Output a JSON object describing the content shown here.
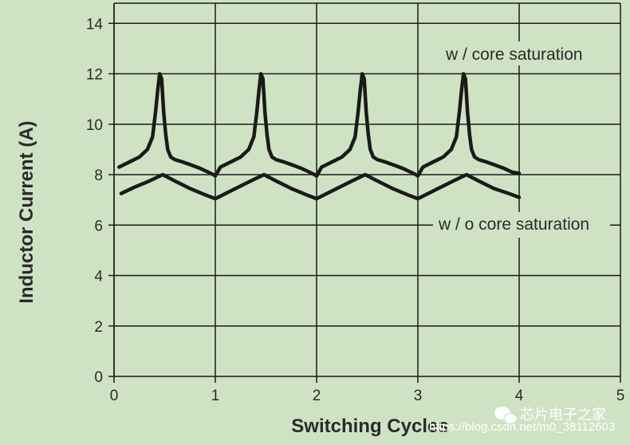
{
  "chart_data": {
    "type": "line",
    "xlabel": "Switching Cycles",
    "ylabel": "Inductor Current (A)",
    "xlim": [
      0,
      5
    ],
    "ylim": [
      0,
      14.8
    ],
    "x_ticks": [
      0,
      1,
      2,
      3,
      4,
      5
    ],
    "y_ticks": [
      0,
      2,
      4,
      6,
      8,
      10,
      12,
      14
    ],
    "grid": true,
    "colors": {
      "background": "#cfe3c4",
      "grid": "#1a1a1a",
      "line": "#1a1a1a"
    },
    "annotations": [
      {
        "text": "w / core saturation",
        "series": 0
      },
      {
        "text": "w / o core saturation",
        "series": 1
      }
    ],
    "series": [
      {
        "x": [
          0.05,
          0.15,
          0.25,
          0.33,
          0.38,
          0.41,
          0.43,
          0.45,
          0.47,
          0.49,
          0.51,
          0.53,
          0.56,
          0.6,
          0.68,
          0.75,
          0.85,
          0.93,
          0.98,
          1.0,
          1.05,
          1.15,
          1.25,
          1.33,
          1.38,
          1.41,
          1.43,
          1.45,
          1.47,
          1.49,
          1.51,
          1.53,
          1.56,
          1.6,
          1.68,
          1.75,
          1.85,
          1.93,
          1.98,
          2.0,
          2.05,
          2.15,
          2.25,
          2.33,
          2.38,
          2.41,
          2.43,
          2.45,
          2.47,
          2.49,
          2.51,
          2.53,
          2.56,
          2.6,
          2.68,
          2.75,
          2.85,
          2.93,
          2.98,
          3.0,
          3.05,
          3.15,
          3.25,
          3.33,
          3.38,
          3.41,
          3.43,
          3.45,
          3.47,
          3.49,
          3.51,
          3.53,
          3.56,
          3.6,
          3.68,
          3.75,
          3.85,
          3.93,
          4.0
        ],
        "y": [
          8.3,
          8.5,
          8.7,
          9.0,
          9.5,
          10.5,
          11.3,
          12.0,
          11.8,
          10.5,
          9.6,
          9.0,
          8.7,
          8.6,
          8.5,
          8.4,
          8.25,
          8.1,
          8.0,
          7.95,
          8.3,
          8.5,
          8.7,
          9.0,
          9.5,
          10.5,
          11.3,
          12.0,
          11.8,
          10.5,
          9.6,
          9.0,
          8.7,
          8.6,
          8.5,
          8.4,
          8.25,
          8.1,
          8.0,
          7.95,
          8.3,
          8.5,
          8.7,
          9.0,
          9.5,
          10.5,
          11.3,
          12.0,
          11.8,
          10.5,
          9.6,
          9.0,
          8.7,
          8.6,
          8.5,
          8.4,
          8.25,
          8.1,
          8.0,
          7.95,
          8.3,
          8.5,
          8.7,
          9.0,
          9.5,
          10.5,
          11.3,
          12.0,
          11.8,
          10.5,
          9.6,
          9.0,
          8.7,
          8.6,
          8.5,
          8.4,
          8.25,
          8.1,
          8.05
        ]
      },
      {
        "x": [
          0.07,
          0.2,
          0.35,
          0.48,
          0.6,
          0.75,
          0.9,
          1.0,
          1.2,
          1.35,
          1.48,
          1.6,
          1.75,
          1.9,
          2.0,
          2.2,
          2.35,
          2.48,
          2.6,
          2.75,
          2.9,
          3.0,
          3.2,
          3.35,
          3.48,
          3.6,
          3.75,
          3.9,
          4.0
        ],
        "y": [
          7.25,
          7.5,
          7.75,
          8.0,
          7.75,
          7.45,
          7.2,
          7.05,
          7.45,
          7.75,
          8.0,
          7.75,
          7.45,
          7.2,
          7.05,
          7.45,
          7.75,
          8.0,
          7.75,
          7.45,
          7.2,
          7.05,
          7.45,
          7.75,
          8.0,
          7.75,
          7.45,
          7.25,
          7.1
        ]
      }
    ]
  },
  "watermark": {
    "url": "https://blog.csdn.net/m0_38112603",
    "brand": "芯片电子之家"
  }
}
